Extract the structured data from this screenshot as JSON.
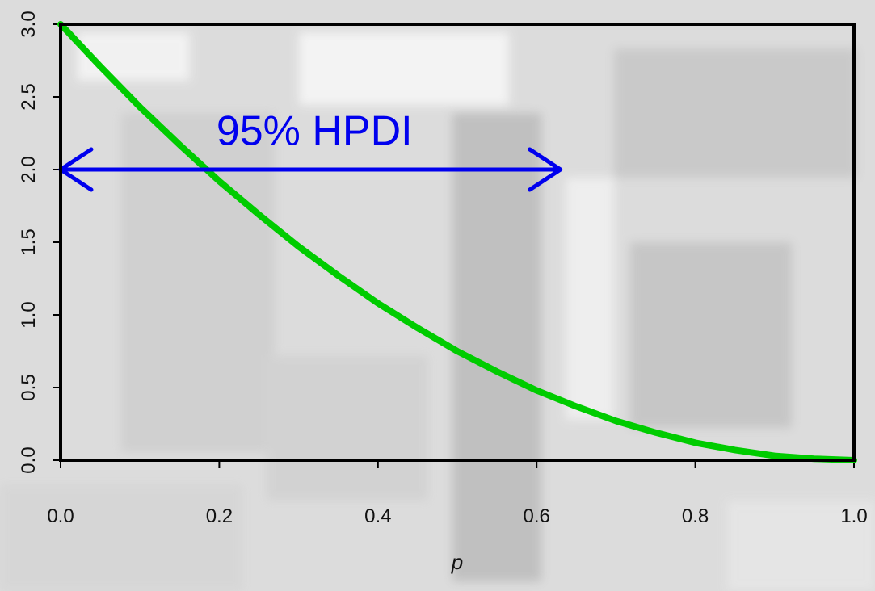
{
  "chart_data": {
    "type": "line",
    "title": "",
    "xlabel": "p",
    "ylabel": "",
    "xlim": [
      0.0,
      1.0
    ],
    "ylim": [
      0.0,
      3.0
    ],
    "x_ticks": [
      "0.0",
      "0.2",
      "0.4",
      "0.6",
      "0.8",
      "1.0"
    ],
    "y_ticks": [
      "0.0",
      "0.5",
      "1.0",
      "1.5",
      "2.0",
      "2.5",
      "3.0"
    ],
    "grid": false,
    "legend": "none",
    "series": [
      {
        "color": "#00cc00",
        "x": [
          0.0,
          0.05,
          0.1,
          0.15,
          0.2,
          0.25,
          0.3,
          0.35,
          0.4,
          0.45,
          0.5,
          0.55,
          0.6,
          0.65,
          0.7,
          0.75,
          0.8,
          0.85,
          0.9,
          0.95,
          1.0
        ],
        "y": [
          3.0,
          2.71,
          2.43,
          2.17,
          1.92,
          1.69,
          1.47,
          1.27,
          1.08,
          0.91,
          0.75,
          0.61,
          0.48,
          0.37,
          0.27,
          0.19,
          0.12,
          0.07,
          0.03,
          0.01,
          0.0
        ]
      }
    ],
    "annotations": [
      {
        "text": "95% HPDI",
        "color": "#0000ee",
        "type": "double-arrow",
        "x_start": 0.0,
        "x_end": 0.63,
        "y": 2.0,
        "text_x": 0.32,
        "text_y": 2.17
      }
    ]
  }
}
